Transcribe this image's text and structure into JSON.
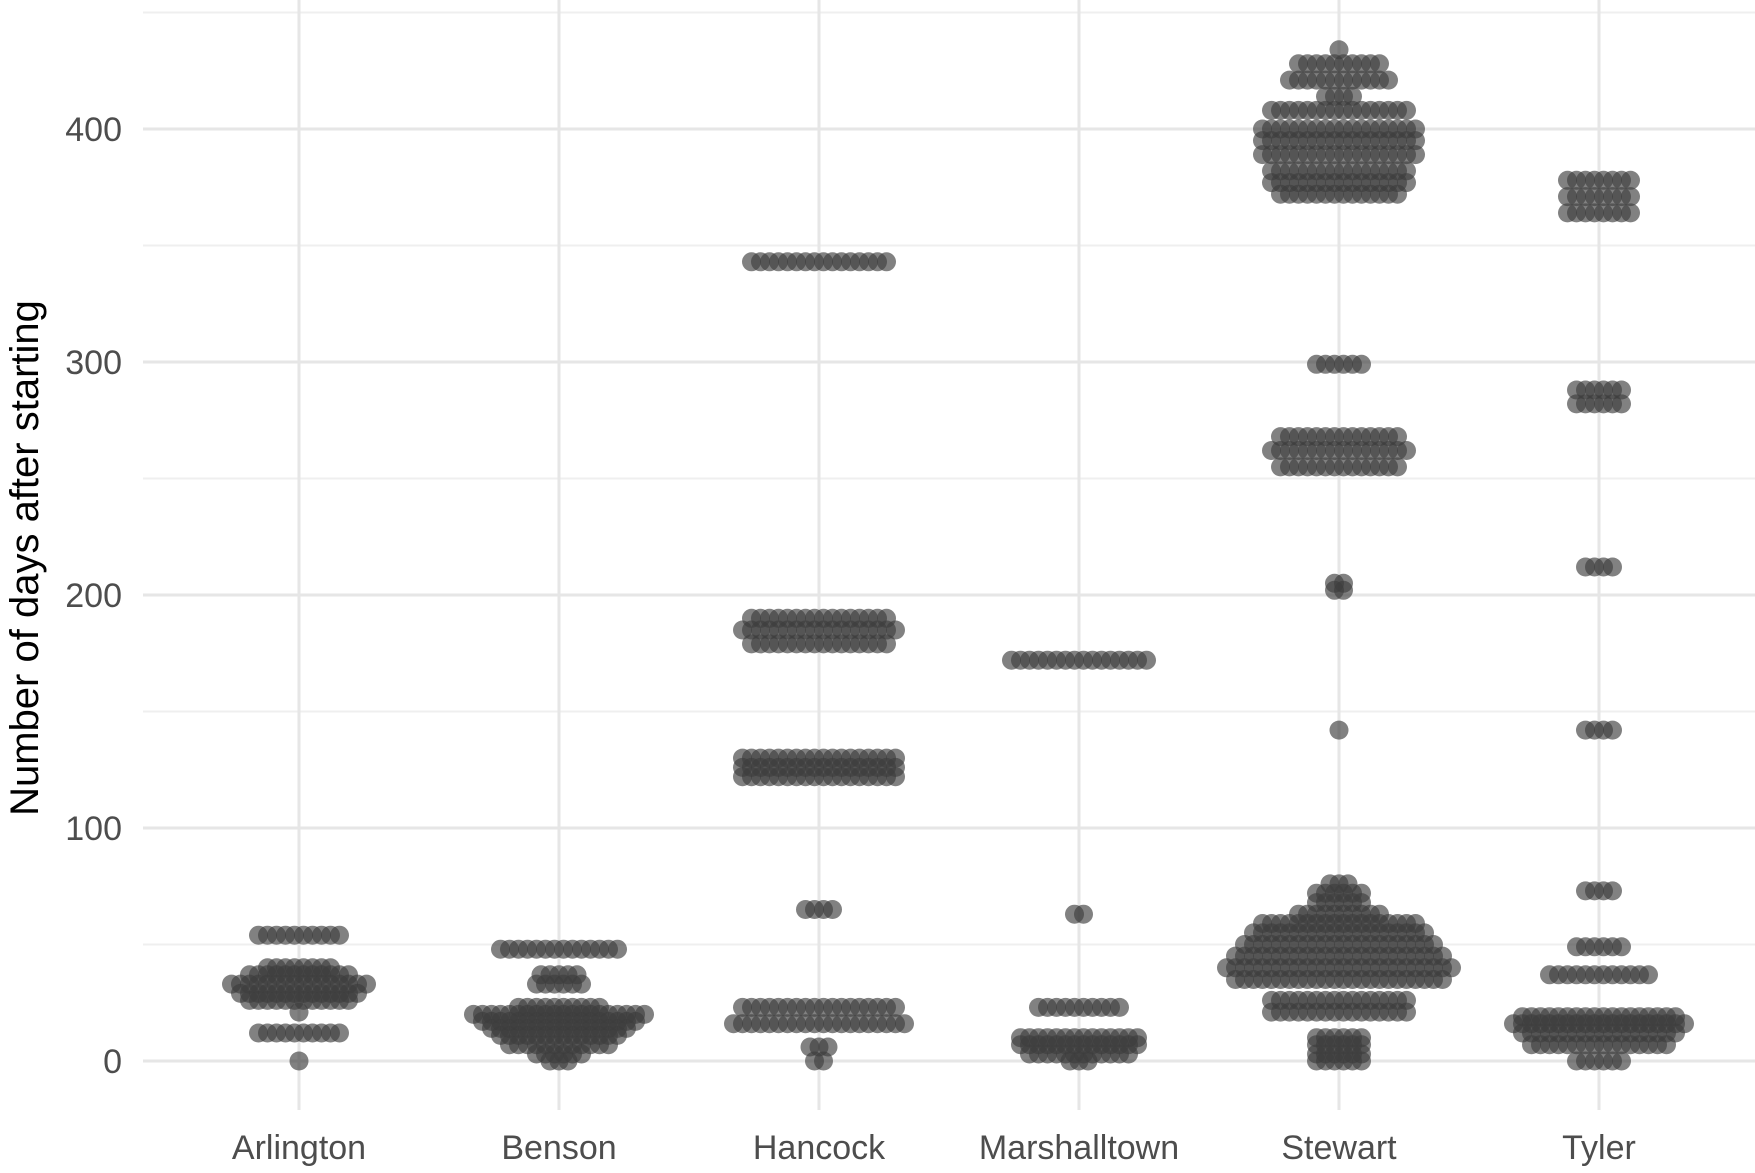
{
  "chart_data": {
    "type": "scatter",
    "subtype": "beeswarm",
    "title": "",
    "xlabel": "",
    "ylabel": "Number of days after starting",
    "categories": [
      "Arlington",
      "Benson",
      "Hancock",
      "Marshalltown",
      "Stewart",
      "Tyler"
    ],
    "ylim": [
      -22,
      450
    ],
    "yticks": [
      0,
      100,
      200,
      300,
      400
    ],
    "grid": true,
    "legend": "none",
    "point_color": "#3d3d3d",
    "groups": [
      {
        "category": "Arlington",
        "values": [
          [
            0,
            1
          ],
          [
            12,
            10
          ],
          [
            21,
            1
          ],
          [
            26,
            12
          ],
          [
            29,
            14
          ],
          [
            33,
            16
          ],
          [
            37,
            12
          ],
          [
            40,
            8
          ],
          [
            54,
            10
          ]
        ]
      },
      {
        "category": "Benson",
        "values": [
          [
            0,
            3
          ],
          [
            3,
            6
          ],
          [
            7,
            12
          ],
          [
            11,
            14
          ],
          [
            14,
            16
          ],
          [
            17,
            18
          ],
          [
            20,
            20
          ],
          [
            23,
            10
          ],
          [
            33,
            6
          ],
          [
            37,
            5
          ],
          [
            48,
            14
          ]
        ]
      },
      {
        "category": "Hancock",
        "values": [
          [
            0,
            2
          ],
          [
            6,
            3
          ],
          [
            16,
            20
          ],
          [
            23,
            18
          ],
          [
            65,
            4
          ],
          [
            122,
            18
          ],
          [
            126,
            18
          ],
          [
            130,
            18
          ],
          [
            179,
            16
          ],
          [
            185,
            18
          ],
          [
            190,
            16
          ],
          [
            343,
            16
          ]
        ]
      },
      {
        "category": "Marshalltown",
        "values": [
          [
            0,
            3
          ],
          [
            3,
            12
          ],
          [
            7,
            14
          ],
          [
            10,
            14
          ],
          [
            23,
            10
          ],
          [
            63,
            2
          ],
          [
            172,
            16
          ]
        ]
      },
      {
        "category": "Stewart",
        "values": [
          [
            0,
            6
          ],
          [
            3,
            6
          ],
          [
            7,
            6
          ],
          [
            10,
            6
          ],
          [
            21,
            16
          ],
          [
            26,
            16
          ],
          [
            35,
            24
          ],
          [
            40,
            26
          ],
          [
            45,
            24
          ],
          [
            50,
            22
          ],
          [
            55,
            20
          ],
          [
            59,
            18
          ],
          [
            63,
            10
          ],
          [
            68,
            6
          ],
          [
            72,
            6
          ],
          [
            76,
            3
          ],
          [
            142,
            1
          ],
          [
            202,
            2
          ],
          [
            205,
            2
          ],
          [
            255,
            14
          ],
          [
            262,
            16
          ],
          [
            268,
            14
          ],
          [
            299,
            6
          ],
          [
            372,
            14
          ],
          [
            377,
            16
          ],
          [
            382,
            16
          ],
          [
            389,
            18
          ],
          [
            395,
            18
          ],
          [
            400,
            18
          ],
          [
            408,
            16
          ],
          [
            414,
            4
          ],
          [
            421,
            12
          ],
          [
            428,
            10
          ],
          [
            434,
            1
          ]
        ]
      },
      {
        "category": "Tyler",
        "values": [
          [
            0,
            6
          ],
          [
            7,
            16
          ],
          [
            12,
            18
          ],
          [
            16,
            20
          ],
          [
            19,
            18
          ],
          [
            37,
            12
          ],
          [
            49,
            6
          ],
          [
            73,
            4
          ],
          [
            142,
            4
          ],
          [
            212,
            4
          ],
          [
            282,
            6
          ],
          [
            288,
            6
          ],
          [
            364,
            8
          ],
          [
            371,
            8
          ],
          [
            378,
            8
          ]
        ]
      }
    ]
  }
}
